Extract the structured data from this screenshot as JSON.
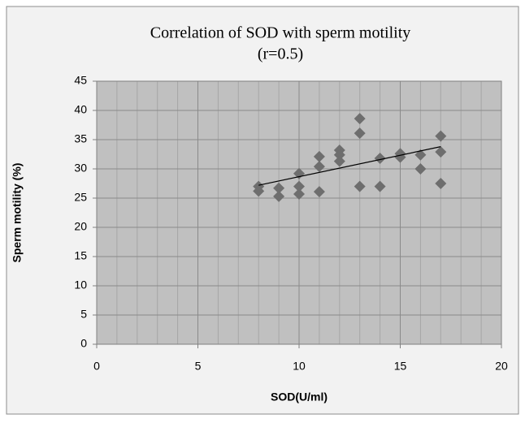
{
  "chart_data": {
    "type": "scatter",
    "title": "Correlation of SOD with sperm motility",
    "subtitle": "(r=0.5)",
    "x_label": "SOD(U/ml)",
    "y_label": "Sperm motility (%)",
    "x": [
      8,
      8,
      9,
      9,
      10,
      10,
      10,
      11,
      11,
      11,
      12,
      12,
      12,
      13,
      13,
      13,
      14,
      14,
      15,
      15,
      16,
      16,
      17,
      17,
      17
    ],
    "y": [
      27.0,
      26.2,
      26.7,
      25.3,
      29.2,
      27.0,
      25.7,
      32.1,
      30.4,
      26.1,
      33.2,
      32.4,
      31.3,
      38.6,
      36.1,
      27.0,
      31.8,
      27.0,
      32.6,
      32.0,
      32.4,
      30.0,
      35.6,
      32.9,
      27.5
    ],
    "color": "#6e6e6e",
    "trendline": {
      "x": [
        8,
        17
      ],
      "y": [
        27.2,
        33.8
      ],
      "color": "#000000"
    },
    "xlim": [
      0,
      20
    ],
    "xticks": [
      0,
      5,
      10,
      15,
      20
    ],
    "ylim": [
      0,
      45
    ],
    "yticks": [
      0,
      5,
      10,
      15,
      20,
      25,
      30,
      35,
      40,
      45
    ],
    "grid": true,
    "minor_grid_x": 1,
    "plot_background": "#c0c0c0"
  }
}
